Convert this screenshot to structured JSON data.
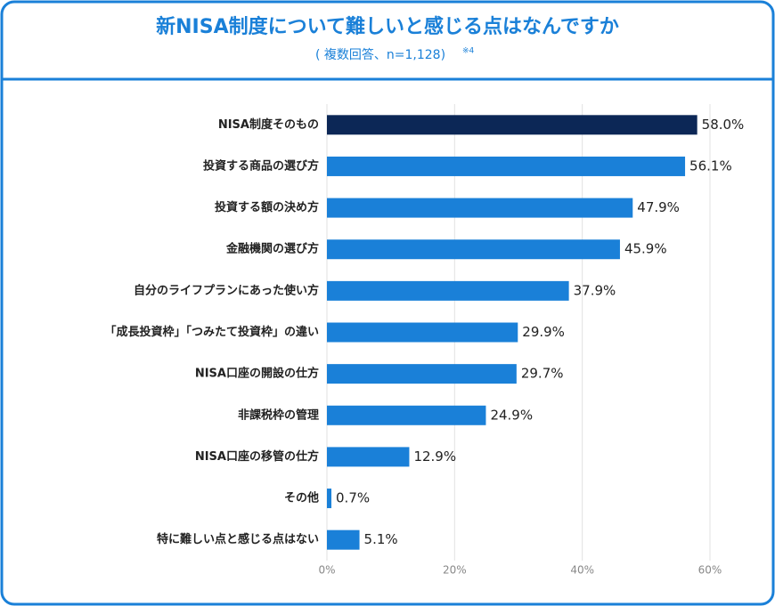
{
  "chart_data": {
    "type": "barh",
    "title": "新NISA制度について難しいと感じる点はなんですか",
    "subtitle": "( 複数回答、n=1,128)",
    "note": "※4",
    "categories": [
      "NISA制度そのもの",
      "投資する商品の選び方",
      "投資する額の決め方",
      "金融機関の選び方",
      "自分のライフプランにあった使い方",
      "「成長投資枠」「つみたて投資枠」の違い",
      "NISA口座の開設の仕方",
      "非課税枠の管理",
      "NISA口座の移管の仕方",
      "その他",
      "特に難しい点と感じる点はない"
    ],
    "values": [
      58.0,
      56.1,
      47.9,
      45.9,
      37.9,
      29.9,
      29.7,
      24.9,
      12.9,
      0.7,
      5.1
    ],
    "value_labels": [
      "58.0%",
      "56.1%",
      "47.9%",
      "45.9%",
      "37.9%",
      "29.9%",
      "29.7%",
      "24.9%",
      "12.9%",
      "0.7%",
      "5.1%"
    ],
    "colors": [
      "#0c2756",
      "#1a80d8",
      "#1a80d8",
      "#1a80d8",
      "#1a80d8",
      "#1a80d8",
      "#1a80d8",
      "#1a80d8",
      "#1a80d8",
      "#1a80d8",
      "#1a80d8"
    ],
    "xlim": [
      0,
      60
    ],
    "xticks": [
      {
        "value": 0,
        "label": "0%"
      },
      {
        "value": 20,
        "label": "20%"
      },
      {
        "value": 40,
        "label": "40%"
      },
      {
        "value": 60,
        "label": "60%"
      }
    ],
    "grid": true
  }
}
